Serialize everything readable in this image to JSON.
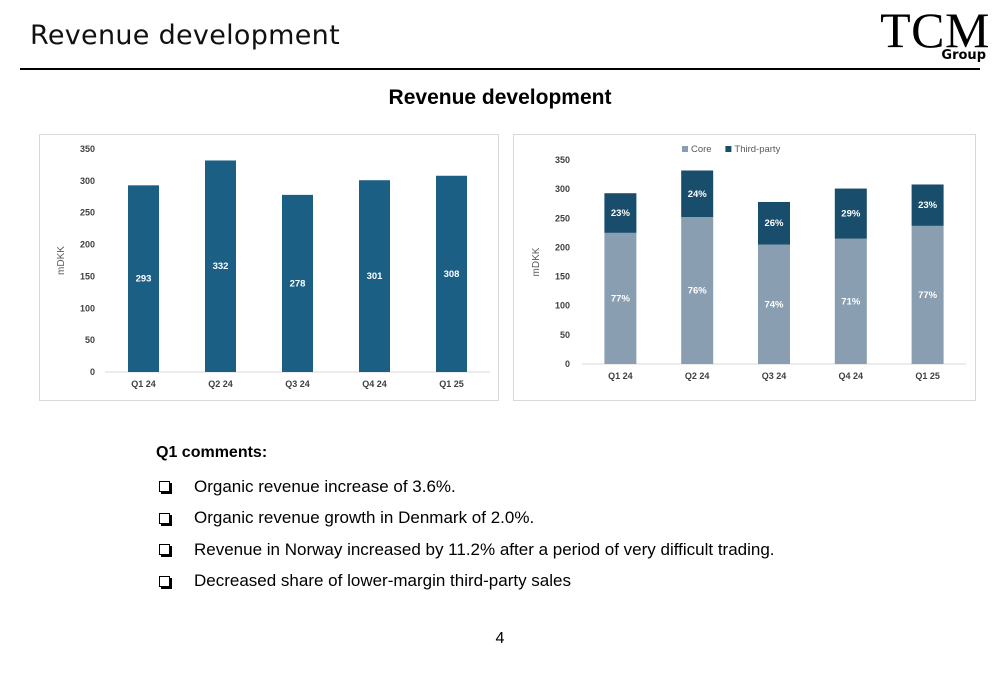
{
  "header": {
    "title": "Revenue development",
    "logo_main": "TCM",
    "logo_sub": "Group"
  },
  "chart_heading": "Revenue development",
  "colors": {
    "primary_bar": "#1b5f85",
    "core": "#8a9eb1",
    "third_party": "#184d6b"
  },
  "chart_data": [
    {
      "type": "bar",
      "categories": [
        "Q1 24",
        "Q2 24",
        "Q3 24",
        "Q4 24",
        "Q1 25"
      ],
      "values": [
        293,
        332,
        278,
        301,
        308
      ],
      "data_labels": [
        "293",
        "332",
        "278",
        "301",
        "308"
      ],
      "ylabel": "mDKK",
      "ylim": [
        0,
        350
      ],
      "yticks": [
        0,
        50,
        100,
        150,
        200,
        250,
        300,
        350
      ],
      "grid": false,
      "legend": "none"
    },
    {
      "type": "bar",
      "stacked": true,
      "categories": [
        "Q1 24",
        "Q2 24",
        "Q3 24",
        "Q4 24",
        "Q1 25"
      ],
      "series": [
        {
          "name": "Core",
          "values": [
            225,
            252,
            205,
            215,
            237
          ],
          "labels": [
            "77%",
            "76%",
            "74%",
            "71%",
            "77%"
          ]
        },
        {
          "name": "Third-party",
          "values": [
            68,
            80,
            73,
            86,
            71
          ],
          "labels": [
            "23%",
            "24%",
            "26%",
            "29%",
            "23%"
          ]
        }
      ],
      "ylabel": "mDKK",
      "ylim": [
        0,
        350
      ],
      "yticks": [
        0,
        50,
        100,
        150,
        200,
        250,
        300,
        350
      ],
      "grid": false,
      "legend": "top-center"
    }
  ],
  "comments": {
    "title": "Q1 comments:",
    "items": [
      "Organic revenue increase of 3.6%.",
      "Organic revenue growth in Denmark of 2.0%.",
      "Revenue in Norway increased by 11.2% after a period of very difficult trading.",
      "Decreased share of lower-margin third-party sales"
    ]
  },
  "page_number": "4"
}
